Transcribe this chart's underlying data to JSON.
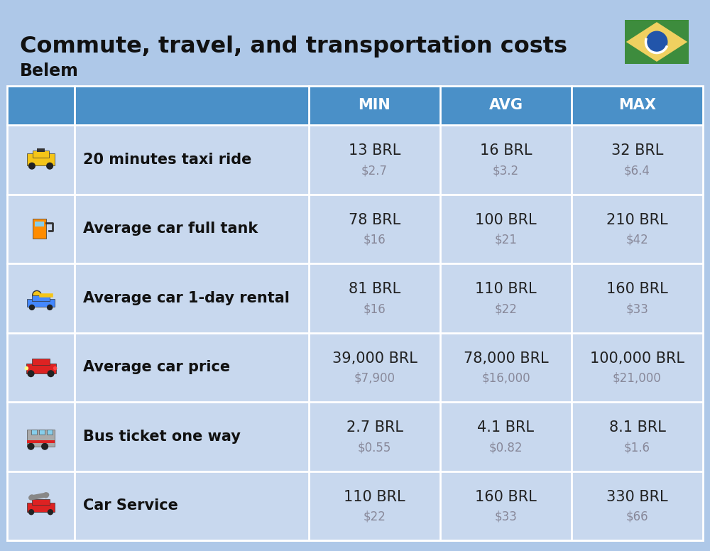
{
  "title": "Commute, travel, and transportation costs",
  "subtitle": "Belem",
  "bg_color": "#aec8e8",
  "header_bg_color": "#4a90c8",
  "row_bg_color": "#c8d8ee",
  "header_text_color": "#ffffff",
  "label_text_color": "#111111",
  "value_text_color": "#222222",
  "sub_value_text_color": "#888899",
  "divider_color": "#ffffff",
  "columns": [
    "MIN",
    "AVG",
    "MAX"
  ],
  "rows": [
    {
      "label": "20 minutes taxi ride",
      "min_brl": "13 BRL",
      "min_usd": "$2.7",
      "avg_brl": "16 BRL",
      "avg_usd": "$3.2",
      "max_brl": "32 BRL",
      "max_usd": "$6.4"
    },
    {
      "label": "Average car full tank",
      "min_brl": "78 BRL",
      "min_usd": "$16",
      "avg_brl": "100 BRL",
      "avg_usd": "$21",
      "max_brl": "210 BRL",
      "max_usd": "$42"
    },
    {
      "label": "Average car 1-day rental",
      "min_brl": "81 BRL",
      "min_usd": "$16",
      "avg_brl": "110 BRL",
      "avg_usd": "$22",
      "max_brl": "160 BRL",
      "max_usd": "$33"
    },
    {
      "label": "Average car price",
      "min_brl": "39,000 BRL",
      "min_usd": "$7,900",
      "avg_brl": "78,000 BRL",
      "avg_usd": "$16,000",
      "max_brl": "100,000 BRL",
      "max_usd": "$21,000"
    },
    {
      "label": "Bus ticket one way",
      "min_brl": "2.7 BRL",
      "min_usd": "$0.55",
      "avg_brl": "4.1 BRL",
      "avg_usd": "$0.82",
      "max_brl": "8.1 BRL",
      "max_usd": "$1.6"
    },
    {
      "label": "Car Service",
      "min_brl": "110 BRL",
      "min_usd": "$22",
      "avg_brl": "160 BRL",
      "avg_usd": "$33",
      "max_brl": "330 BRL",
      "max_usd": "$66"
    }
  ],
  "title_fontsize": 23,
  "subtitle_fontsize": 17,
  "header_fontsize": 15,
  "label_fontsize": 15,
  "value_fontsize": 15,
  "sub_value_fontsize": 12
}
